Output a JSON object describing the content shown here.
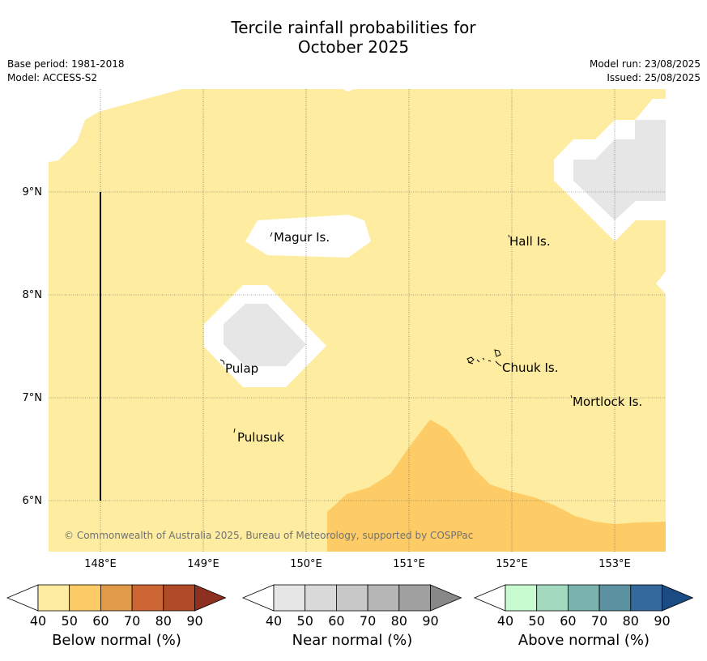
{
  "header": {
    "title_line1": "Tercile rainfall probabilities for",
    "title_line2": "October 2025",
    "base_period": "Base period: 1981-2018",
    "model": "Model: ACCESS-S2",
    "model_run": "Model run: 23/08/2025",
    "issued": "Issued: 25/08/2025"
  },
  "map": {
    "lon_ticks": [
      "148°E",
      "149°E",
      "150°E",
      "151°E",
      "152°E",
      "153°E"
    ],
    "lat_ticks": [
      "9°N",
      "8°N",
      "7°N",
      "6°N"
    ],
    "places": [
      "Magur Is.",
      "Hall Is.",
      "Pulap",
      "Chuuk Is.",
      "Mortlock Is.",
      "Pulusuk"
    ],
    "copyright": "© Commonwealth of Australia 2025, Bureau of Meteorology, supported by COSPPac",
    "colors": {
      "below_50": "#feeca0",
      "below_60": "#fecc66",
      "near_50": "#e6e6e6",
      "land_outline": "#000000"
    }
  },
  "legends": [
    {
      "label": "Below normal (%)",
      "ticks": [
        "40",
        "50",
        "60",
        "70",
        "80",
        "90"
      ],
      "colors": [
        "#ffffff",
        "#feeca0",
        "#fecc66",
        "#e19a48",
        "#cb6533",
        "#b04a27",
        "#8e3020"
      ]
    },
    {
      "label": "Near normal (%)",
      "ticks": [
        "40",
        "50",
        "60",
        "70",
        "80",
        "90"
      ],
      "colors": [
        "#ffffff",
        "#e6e6e6",
        "#d9d9d9",
        "#c8c8c8",
        "#b5b5b5",
        "#a0a0a0",
        "#888888"
      ]
    },
    {
      "label": "Above normal (%)",
      "ticks": [
        "40",
        "50",
        "60",
        "70",
        "80",
        "90"
      ],
      "colors": [
        "#ffffff",
        "#c8fcd0",
        "#a3d9bf",
        "#7ab3ae",
        "#5b91a0",
        "#346a9b",
        "#1b4b83"
      ]
    }
  ]
}
